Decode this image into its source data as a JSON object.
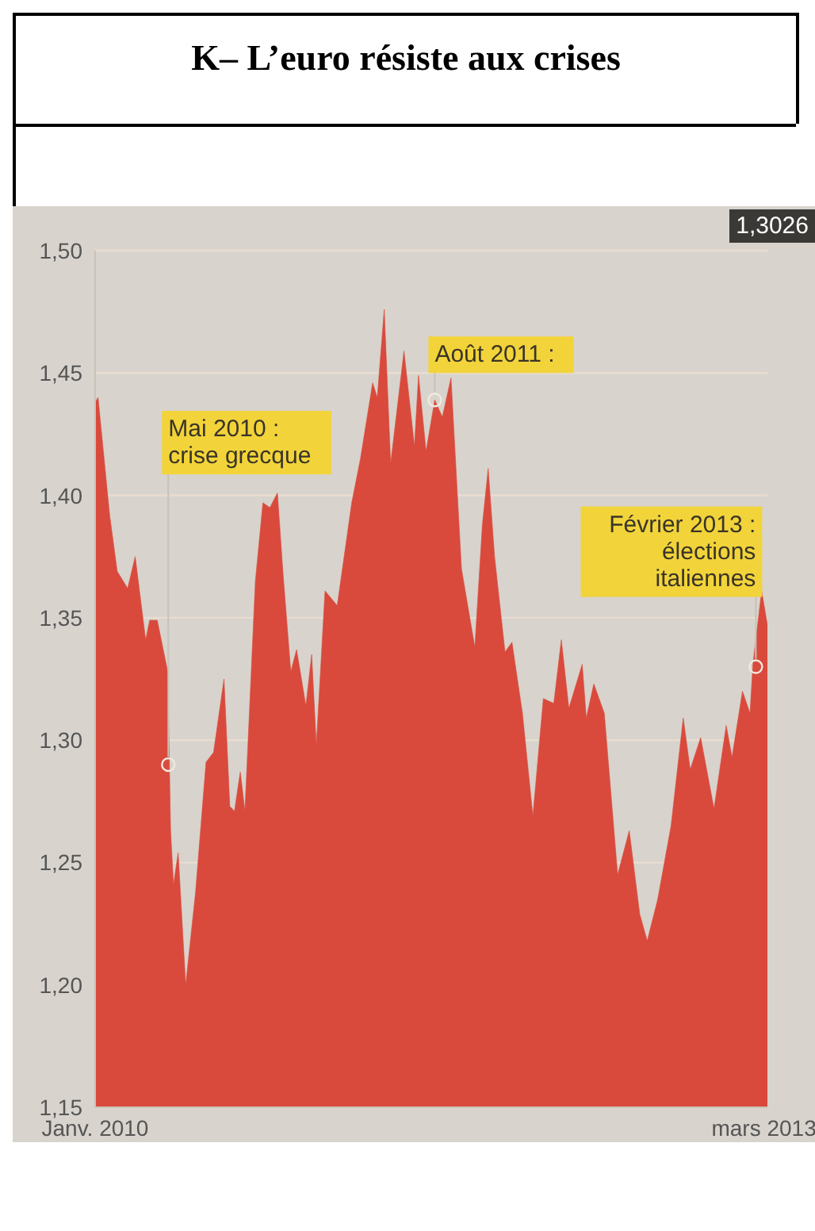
{
  "chart_data": {
    "type": "area",
    "title": "K– L’euro résiste aux crises",
    "x": [
      "2010-01-04",
      "2010-01-09",
      "2010-01-29",
      "2010-02-11",
      "2010-03-01",
      "2010-03-14",
      "2010-04-01",
      "2010-04-08",
      "2010-04-21",
      "2010-05-09",
      "2010-05-14",
      "2010-05-19",
      "2010-05-27",
      "2010-06-09",
      "2010-06-26",
      "2010-07-14",
      "2010-07-27",
      "2010-08-14",
      "2010-08-24",
      "2010-09-01",
      "2010-09-11",
      "2010-09-19",
      "2010-10-07",
      "2010-10-20",
      "2010-11-01",
      "2010-11-14",
      "2010-11-24",
      "2010-12-07",
      "2010-12-17",
      "2011-01-02",
      "2011-01-12",
      "2011-01-20",
      "2011-02-04",
      "2011-02-25",
      "2011-03-22",
      "2011-04-06",
      "2011-04-27",
      "2011-05-05",
      "2011-05-17",
      "2011-05-28",
      "2011-06-20",
      "2011-07-08",
      "2011-07-15",
      "2011-07-28",
      "2011-08-12",
      "2011-08-25",
      "2011-09-09",
      "2011-09-27",
      "2011-10-20",
      "2011-11-02",
      "2011-11-12",
      "2011-11-23",
      "2011-12-11",
      "2011-12-23",
      "2012-01-10",
      "2012-01-28",
      "2012-02-15",
      "2012-03-04",
      "2012-03-17",
      "2012-03-30",
      "2012-04-22",
      "2012-04-29",
      "2012-05-12",
      "2012-05-30",
      "2012-06-22",
      "2012-07-12",
      "2012-07-30",
      "2012-08-12",
      "2012-08-30",
      "2012-09-22",
      "2012-10-13",
      "2012-10-25",
      "2012-11-12",
      "2012-12-05",
      "2012-12-26",
      "2013-01-05",
      "2013-01-23",
      "2013-02-05",
      "2013-02-10",
      "2013-02-25",
      "2013-03-07"
    ],
    "series": [
      {
        "color": "#d94a3c",
        "values": [
          1.438,
          1.44,
          1.392,
          1.369,
          1.362,
          1.375,
          1.341,
          1.349,
          1.349,
          1.328,
          1.263,
          1.241,
          1.254,
          1.2,
          1.238,
          1.291,
          1.295,
          1.325,
          1.273,
          1.271,
          1.287,
          1.271,
          1.365,
          1.397,
          1.395,
          1.401,
          1.367,
          1.328,
          1.337,
          1.314,
          1.335,
          1.298,
          1.361,
          1.355,
          1.397,
          1.415,
          1.446,
          1.44,
          1.476,
          1.413,
          1.459,
          1.42,
          1.449,
          1.418,
          1.439,
          1.432,
          1.448,
          1.37,
          1.338,
          1.388,
          1.411,
          1.375,
          1.336,
          1.34,
          1.311,
          1.269,
          1.317,
          1.315,
          1.341,
          1.313,
          1.331,
          1.309,
          1.323,
          1.311,
          1.245,
          1.263,
          1.229,
          1.218,
          1.235,
          1.265,
          1.309,
          1.288,
          1.301,
          1.272,
          1.306,
          1.293,
          1.32,
          1.311,
          1.331,
          1.361,
          1.347
        ]
      }
    ],
    "xlim": [
      "2010-01-04",
      "2013-03-07"
    ],
    "xticks": [
      {
        "value": "2010-01-04",
        "label": "Janv. 2010"
      },
      {
        "value": "2013-03-01",
        "label": "mars 2013"
      }
    ],
    "ylim": [
      1.15,
      1.5
    ],
    "yticks": [
      {
        "value": 1.15,
        "label": "1,15"
      },
      {
        "value": 1.2,
        "label": "1,20"
      },
      {
        "value": 1.25,
        "label": "1,25"
      },
      {
        "value": 1.3,
        "label": "1,30"
      },
      {
        "value": 1.35,
        "label": "1,35"
      },
      {
        "value": 1.4,
        "label": "1,40"
      },
      {
        "value": 1.45,
        "label": "1,45"
      },
      {
        "value": 1.5,
        "label": "1,50"
      }
    ],
    "grid": "y",
    "annotations": [
      "1,3026",
      {
        "text": "Mai 2010 :\ncrise grecque",
        "x": "2010-05-10",
        "y": 1.29
      },
      {
        "text": "Août 2011 :",
        "x": "2011-08-12",
        "y": 1.439
      },
      {
        "text": "Février 2013 :\nélections\nitaliennes",
        "x": "2013-02-15",
        "y": 1.33
      }
    ]
  }
}
